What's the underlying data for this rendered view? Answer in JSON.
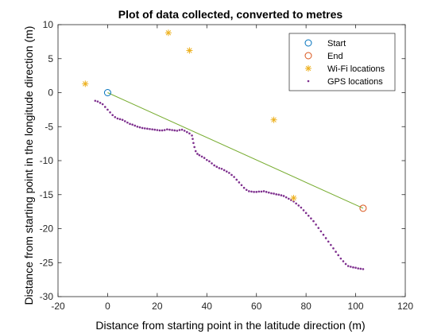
{
  "chart_data": {
    "type": "scatter",
    "title": "Plot of data collected, converted to metres",
    "xlabel": "Distance from starting point in the latitude direction (m)",
    "ylabel": "Distance from starting point in the longitude direction (m)",
    "xlim": [
      -20,
      120
    ],
    "ylim": [
      -30,
      10
    ],
    "xticks": [
      -20,
      0,
      20,
      40,
      60,
      80,
      100,
      120
    ],
    "yticks": [
      -30,
      -25,
      -20,
      -15,
      -10,
      -5,
      0,
      5,
      10
    ],
    "grid": false,
    "legend_position": "top-right",
    "colors": {
      "start": "#0072BD",
      "end": "#D95319",
      "wifi": "#EDB120",
      "gps": "#7E2F8E",
      "line": "#77AC30"
    },
    "series": [
      {
        "name": "Start",
        "marker": "circle",
        "points": [
          [
            0,
            0
          ]
        ]
      },
      {
        "name": "End",
        "marker": "circle",
        "points": [
          [
            103,
            -17
          ]
        ]
      },
      {
        "name": "Wi-Fi locations",
        "marker": "asterisk",
        "points": [
          [
            -9,
            1.3
          ],
          [
            24.5,
            8.8
          ],
          [
            33,
            6.2
          ],
          [
            67,
            -4
          ],
          [
            75,
            -15.5
          ]
        ]
      },
      {
        "name": "GPS locations",
        "marker": "dot",
        "points": [
          [
            -5,
            -1.2
          ],
          [
            -4,
            -1.3
          ],
          [
            -3,
            -1.5
          ],
          [
            -2,
            -1.7
          ],
          [
            -1,
            -2.1
          ],
          [
            0,
            -2.5
          ],
          [
            1,
            -2.9
          ],
          [
            2,
            -3.3
          ],
          [
            3,
            -3.6
          ],
          [
            4,
            -3.8
          ],
          [
            5,
            -3.9
          ],
          [
            6,
            -4.0
          ],
          [
            7,
            -4.2
          ],
          [
            8,
            -4.4
          ],
          [
            9,
            -4.6
          ],
          [
            10,
            -4.7
          ],
          [
            11,
            -4.85
          ],
          [
            12,
            -5.0
          ],
          [
            13,
            -5.1
          ],
          [
            14,
            -5.2
          ],
          [
            15,
            -5.25
          ],
          [
            16,
            -5.3
          ],
          [
            17,
            -5.35
          ],
          [
            18,
            -5.4
          ],
          [
            19,
            -5.45
          ],
          [
            20,
            -5.5
          ],
          [
            21,
            -5.55
          ],
          [
            22,
            -5.55
          ],
          [
            23,
            -5.5
          ],
          [
            24,
            -5.4
          ],
          [
            25,
            -5.45
          ],
          [
            26,
            -5.5
          ],
          [
            27,
            -5.55
          ],
          [
            28,
            -5.6
          ],
          [
            29,
            -5.5
          ],
          [
            30,
            -5.45
          ],
          [
            31,
            -5.6
          ],
          [
            32,
            -5.8
          ],
          [
            33,
            -6.0
          ],
          [
            34,
            -6.3
          ],
          [
            34.3,
            -6.8
          ],
          [
            34.6,
            -7.4
          ],
          [
            35,
            -8.0
          ],
          [
            35.5,
            -8.6
          ],
          [
            36.2,
            -9.0
          ],
          [
            37,
            -9.2
          ],
          [
            38,
            -9.4
          ],
          [
            39,
            -9.6
          ],
          [
            40,
            -9.9
          ],
          [
            41,
            -10.1
          ],
          [
            42,
            -10.4
          ],
          [
            43,
            -10.7
          ],
          [
            44,
            -10.9
          ],
          [
            45,
            -11.1
          ],
          [
            46,
            -11.2
          ],
          [
            47,
            -11.4
          ],
          [
            48,
            -11.6
          ],
          [
            49,
            -11.8
          ],
          [
            50,
            -12.1
          ],
          [
            51,
            -12.4
          ],
          [
            52,
            -12.8
          ],
          [
            53,
            -13.2
          ],
          [
            54,
            -13.6
          ],
          [
            55,
            -14.0
          ],
          [
            56,
            -14.3
          ],
          [
            57,
            -14.5
          ],
          [
            58,
            -14.55
          ],
          [
            59,
            -14.6
          ],
          [
            60,
            -14.6
          ],
          [
            61,
            -14.55
          ],
          [
            62,
            -14.55
          ],
          [
            63,
            -14.5
          ],
          [
            64,
            -14.6
          ],
          [
            65,
            -14.7
          ],
          [
            66,
            -14.8
          ],
          [
            67,
            -14.85
          ],
          [
            68,
            -14.95
          ],
          [
            69,
            -15.0
          ],
          [
            70,
            -15.1
          ],
          [
            71,
            -15.2
          ],
          [
            72,
            -15.4
          ],
          [
            73,
            -15.6
          ],
          [
            74,
            -15.8
          ],
          [
            75,
            -16.0
          ],
          [
            76,
            -16.3
          ],
          [
            77,
            -16.6
          ],
          [
            78,
            -16.9
          ],
          [
            79,
            -17.3
          ],
          [
            80,
            -17.7
          ],
          [
            81,
            -18.1
          ],
          [
            82,
            -18.5
          ],
          [
            83,
            -18.9
          ],
          [
            84,
            -19.4
          ],
          [
            85,
            -19.9
          ],
          [
            86,
            -20.4
          ],
          [
            87,
            -20.9
          ],
          [
            88,
            -21.4
          ],
          [
            89,
            -21.9
          ],
          [
            90,
            -22.4
          ],
          [
            91,
            -22.9
          ],
          [
            92,
            -23.4
          ],
          [
            93,
            -23.9
          ],
          [
            94,
            -24.4
          ],
          [
            95,
            -24.8
          ],
          [
            96,
            -25.2
          ],
          [
            97,
            -25.5
          ],
          [
            98,
            -25.6
          ],
          [
            99,
            -25.7
          ],
          [
            100,
            -25.75
          ],
          [
            101,
            -25.85
          ],
          [
            102,
            -25.9
          ],
          [
            103,
            -25.95
          ]
        ]
      }
    ],
    "lines": [
      {
        "from": [
          0,
          0
        ],
        "to": [
          103,
          -17
        ]
      }
    ]
  }
}
